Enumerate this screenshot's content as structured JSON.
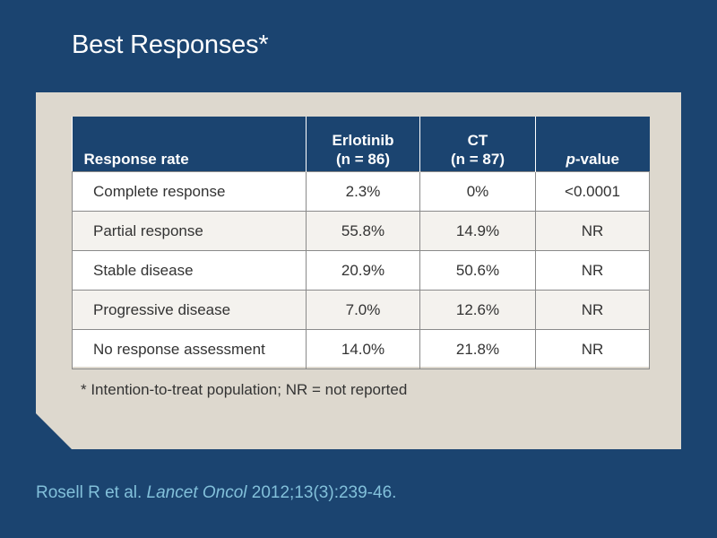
{
  "title": "Best Responses*",
  "table": {
    "headers": [
      {
        "line1": "",
        "line2": "Response rate"
      },
      {
        "line1": "Erlotinib",
        "line2": "(n = 86)"
      },
      {
        "line1": "CT",
        "line2": "(n = 87)"
      },
      {
        "line1": "",
        "line2_italic": "p",
        "line2_rest": "-value"
      }
    ],
    "rows": [
      [
        "Complete response",
        "2.3%",
        "0%",
        "<0.0001"
      ],
      [
        "Partial response",
        "55.8%",
        "14.9%",
        "NR"
      ],
      [
        "Stable disease",
        "20.9%",
        "50.6%",
        "NR"
      ],
      [
        "Progressive disease",
        "7.0%",
        "12.6%",
        "NR"
      ],
      [
        "No response assessment",
        "14.0%",
        "21.8%",
        "NR"
      ]
    ]
  },
  "footnote": "* Intention-to-treat population; NR = not reported",
  "citation": {
    "authors": "Rosell R et al. ",
    "journal": "Lancet Oncol",
    "details": " 2012;13(3):239-46."
  },
  "colors": {
    "background": "#1b4470",
    "panel": "#ddd8ce",
    "header": "#1b4470",
    "citation": "#82c0da"
  }
}
